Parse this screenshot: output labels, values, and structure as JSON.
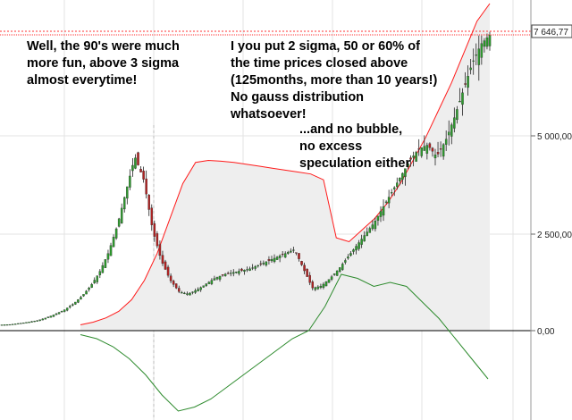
{
  "annotations": {
    "note_90s": "Well, the 90's were much\nmore fun, above 3 sigma\nalmost everytime!",
    "note_sigma": "I you put 2 sigma, 50 or 60% of\nthe time prices closed above\n(125months, more than 10 years!)\nNo gauss distribution\nwhatsoever!",
    "note_bubble": "...and no bubble,\nno excess\nspeculation either"
  },
  "chart_data": [
    {
      "type": "candlestick",
      "title": "",
      "y_ticks": [
        "2 500,00",
        "5 000,00"
      ],
      "last_value_label": "7 646,77",
      "last_value": 7646.77,
      "ylim_upper_panel": [
        0,
        8000
      ],
      "price_close": [
        150,
        160,
        190,
        220,
        260,
        330,
        420,
        530,
        680,
        880,
        1150,
        1500,
        2000,
        2700,
        3600,
        4500,
        3900,
        2600,
        1800,
        1300,
        1000,
        950,
        1050,
        1200,
        1350,
        1450,
        1500,
        1550,
        1600,
        1700,
        1800,
        1900,
        2000,
        2100,
        1600,
        1100,
        1150,
        1350,
        1600,
        1900,
        2200,
        2500,
        2800,
        3200,
        3600,
        4000,
        4400,
        4700,
        4800,
        4500,
        4900,
        5500,
        6200,
        6900,
        7400,
        7646.77
      ],
      "upper_band_2sigma": [
        150,
        220,
        330,
        500,
        800,
        1300,
        2000,
        2900,
        3800,
        4350,
        4400,
        4380,
        4350,
        4300,
        4250,
        4200,
        4150,
        4100,
        4050,
        3900,
        2400,
        2300,
        2600,
        2900,
        3300,
        3800,
        4400,
        5000,
        5700,
        6400,
        7200,
        8000,
        8600
      ]
    },
    {
      "type": "line",
      "title": "",
      "y_ticks": [
        "0,00"
      ],
      "zero_label": "0,00",
      "oscillator": [
        -0.05,
        -0.1,
        -0.2,
        -0.35,
        -0.55,
        -0.8,
        -1.0,
        -0.95,
        -0.85,
        -0.7,
        -0.55,
        -0.4,
        -0.25,
        -0.1,
        0.0,
        0.3,
        0.7,
        0.65,
        0.55,
        0.6,
        0.55,
        0.35,
        0.15,
        -0.1,
        -0.35,
        -0.6
      ]
    }
  ]
}
